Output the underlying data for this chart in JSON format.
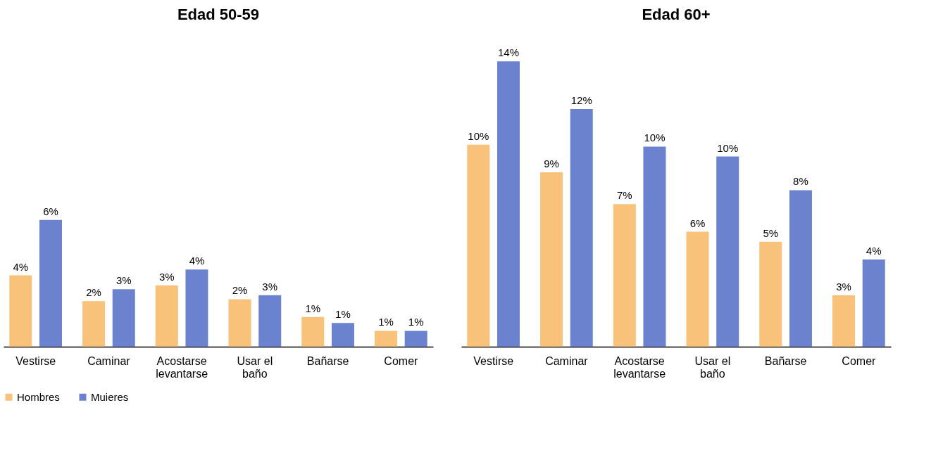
{
  "chart_data": [
    {
      "type": "bar",
      "title": "Edad 50-59",
      "categories": [
        "Vestirse",
        "Caminar",
        "Acostarse levantarse",
        "Usar el baño",
        "Bañarse",
        "Comer"
      ],
      "legend": "bottom",
      "grid": false,
      "series": [
        {
          "name": "Hombres",
          "color": "#f8c27a",
          "values": [
            3.6,
            2.3,
            3.1,
            2.4,
            1.5,
            0.8
          ],
          "value_labels": [
            "4%",
            "2%",
            "3%",
            "2%",
            "1%",
            "1%"
          ]
        },
        {
          "name": "Muieres",
          "color": "#6b83cf",
          "values": [
            6.4,
            2.9,
            3.9,
            2.6,
            1.2,
            0.8
          ],
          "value_labels": [
            "6%",
            "3%",
            "4%",
            "3%",
            "1%",
            "1%"
          ]
        }
      ]
    },
    {
      "type": "bar",
      "title": "Edad 60+",
      "categories": [
        "Vestirse",
        "Caminar",
        "Acostarse levantarse",
        "Usar el baño",
        "Bañarse",
        "Comer"
      ],
      "legend": "bottom",
      "grid": false,
      "series": [
        {
          "name": "Hombres",
          "color": "#f8c27a",
          "values": [
            10.2,
            8.8,
            7.2,
            5.8,
            5.3,
            2.6
          ],
          "value_labels": [
            "10%",
            "9%",
            "7%",
            "6%",
            "5%",
            "3%"
          ]
        },
        {
          "name": "Muieres",
          "color": "#6b83cf",
          "values": [
            14.4,
            12.0,
            10.1,
            9.6,
            7.9,
            4.4
          ],
          "value_labels": [
            "14%",
            "12%",
            "10%",
            "10%",
            "8%",
            "4%"
          ]
        }
      ]
    }
  ]
}
